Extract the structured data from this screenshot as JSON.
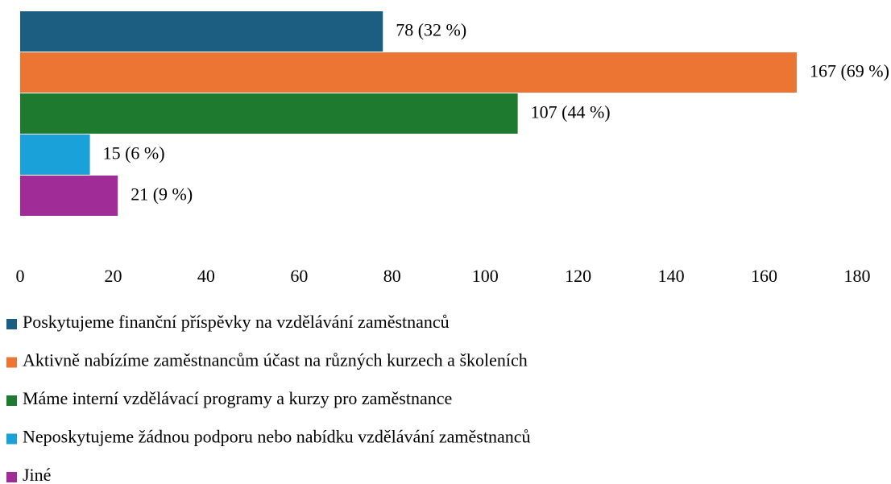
{
  "chart_data": {
    "type": "bar",
    "orientation": "horizontal",
    "series": [
      {
        "name": "Poskytujeme finanční příspěvky na vzdělávání zaměstnanců",
        "color": "#1b5e82",
        "values": [
          78
        ],
        "value_labels": [
          "78 (32 %)"
        ]
      },
      {
        "name": "Aktivně nabízíme zaměstnancům účast na různých kurzech a školeních",
        "color": "#ec7533",
        "values": [
          167
        ],
        "value_labels": [
          "167 (69 %)"
        ]
      },
      {
        "name": "Máme interní vzdělávací programy a kurzy pro zaměstnance",
        "color": "#1e7a2f",
        "values": [
          107
        ],
        "value_labels": [
          "107 (44 %)"
        ]
      },
      {
        "name": "Neposkytujeme žádnou podporu nebo nabídku vzdělávání zaměstnanců",
        "color": "#1aa1da",
        "values": [
          15
        ],
        "value_labels": [
          "15 (6 %)"
        ]
      },
      {
        "name": "Jiné",
        "color": "#a02c97",
        "values": [
          21
        ],
        "value_labels": [
          "21 (9 %)"
        ]
      }
    ],
    "xlim": [
      0,
      180
    ],
    "xticks": [
      0,
      20,
      40,
      60,
      80,
      100,
      120,
      140,
      160,
      180
    ],
    "grid": false,
    "legend": "bottom"
  }
}
